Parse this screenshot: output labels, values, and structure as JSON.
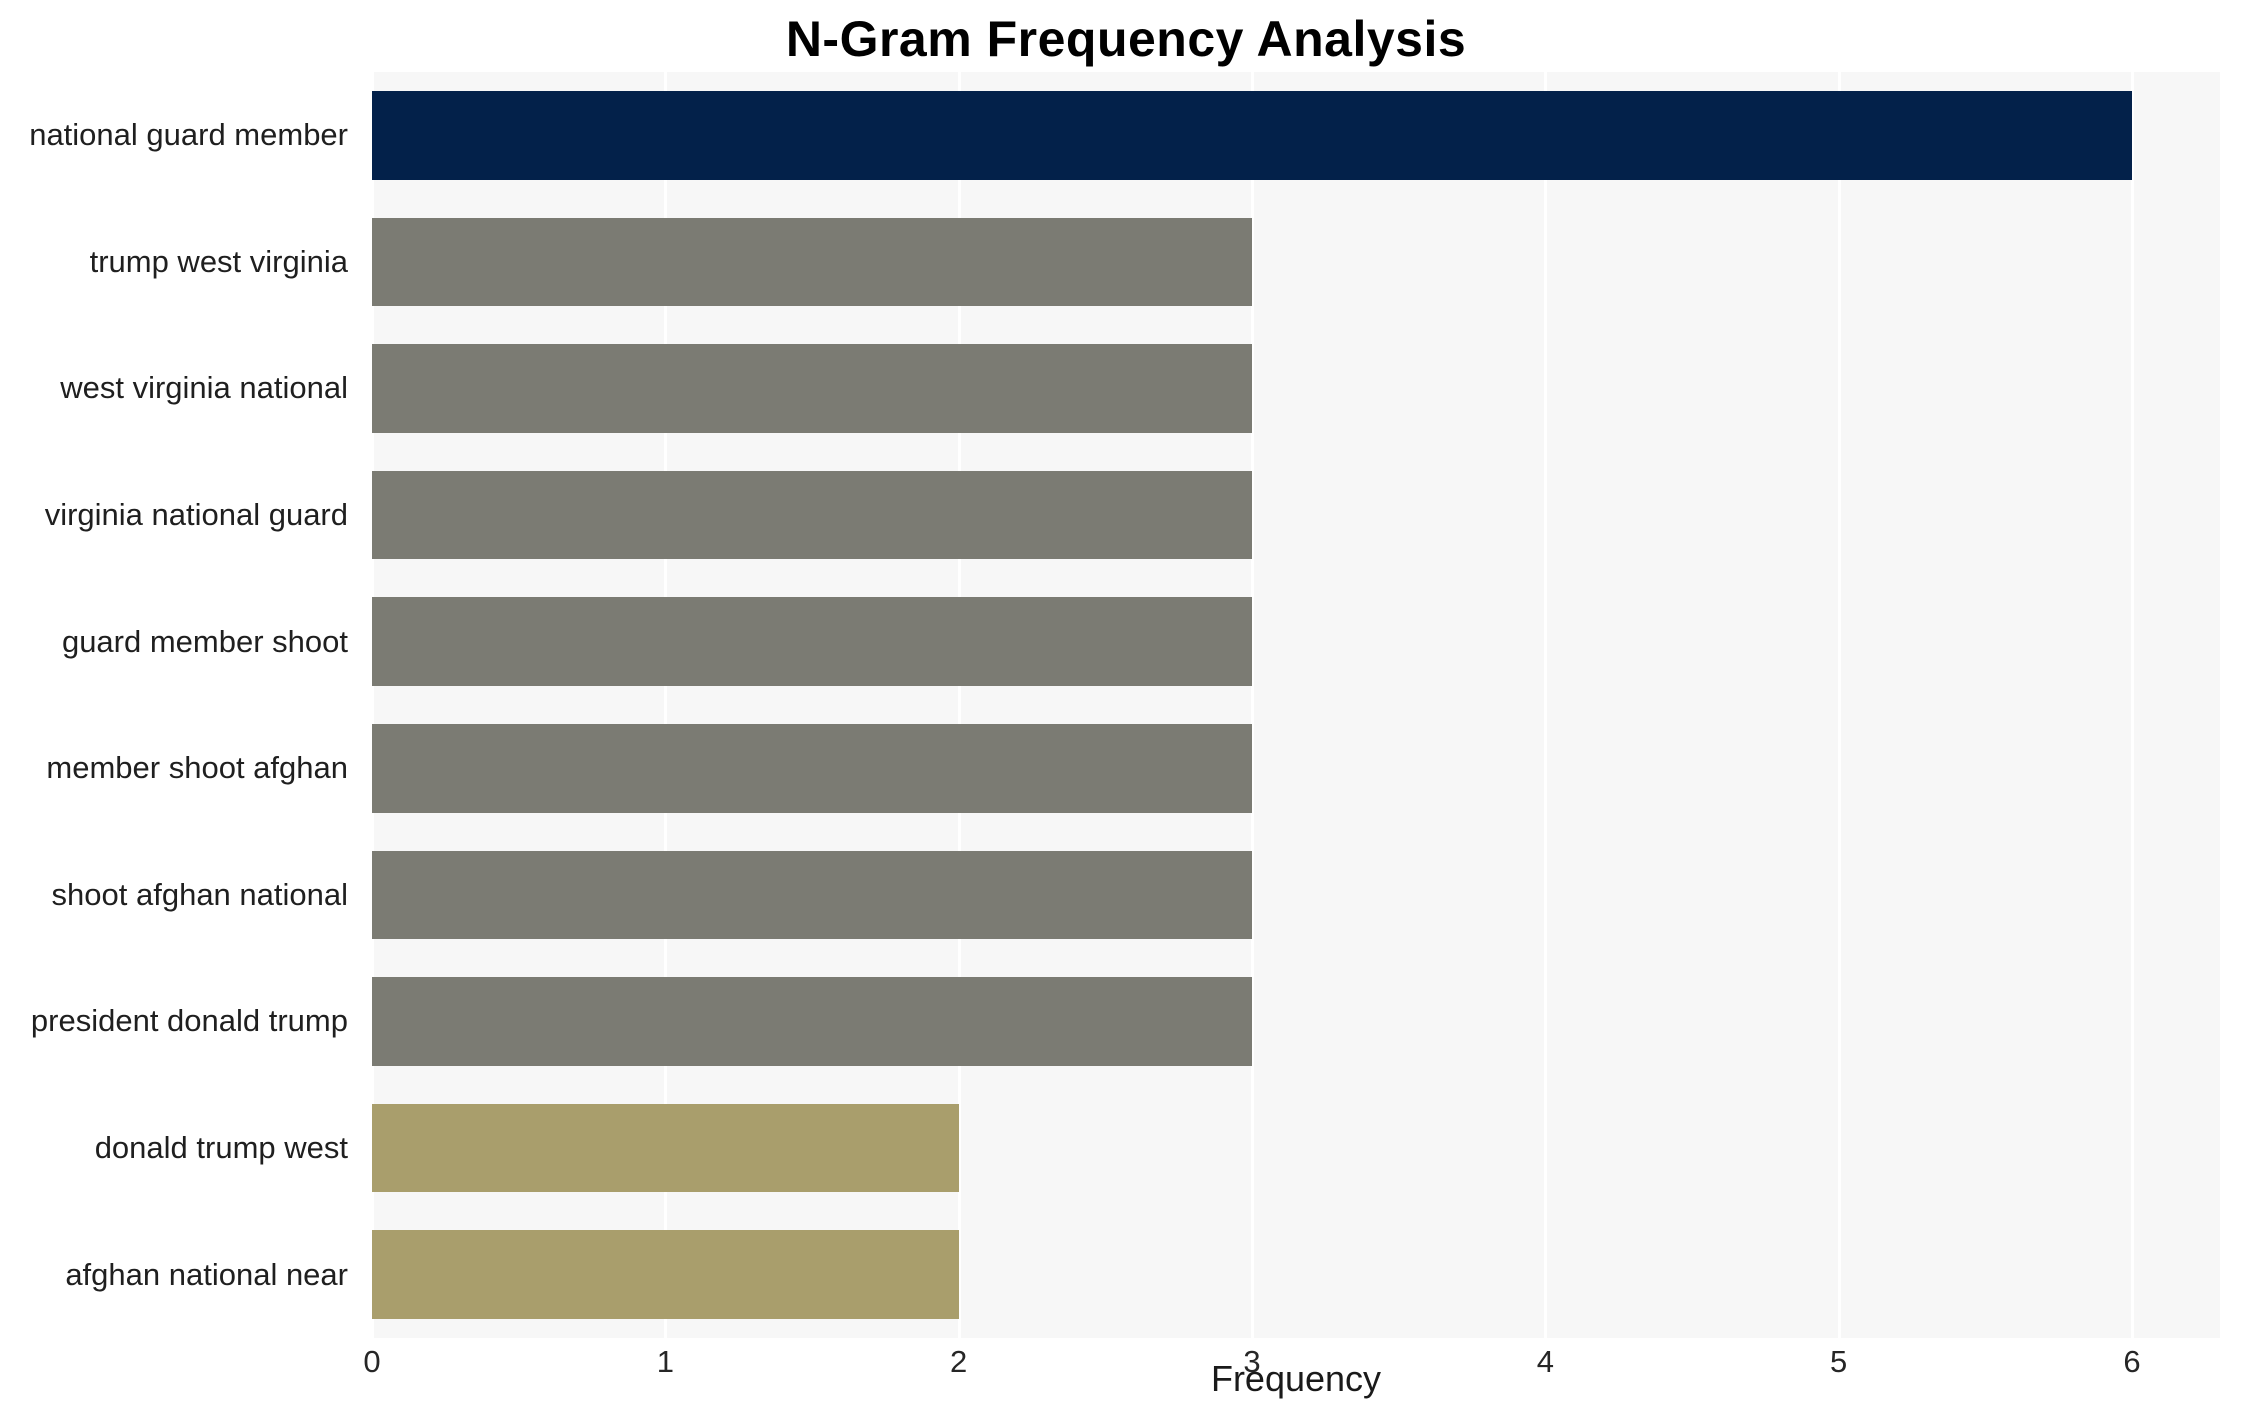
{
  "title": "N-Gram Frequency Analysis",
  "xlabel": "Frequency",
  "chart_data": {
    "type": "bar",
    "orientation": "horizontal",
    "title": "N-Gram Frequency Analysis",
    "xlabel": "Frequency",
    "ylabel": "",
    "categories": [
      "national guard member",
      "trump west virginia",
      "west virginia national",
      "virginia national guard",
      "guard member shoot",
      "member shoot afghan",
      "shoot afghan national",
      "president donald trump",
      "donald trump west",
      "afghan national near"
    ],
    "values": [
      6,
      3,
      3,
      3,
      3,
      3,
      3,
      3,
      2,
      2
    ],
    "bar_colors": [
      "#03214a",
      "#7b7b73",
      "#7b7b73",
      "#7b7b73",
      "#7b7b73",
      "#7b7b73",
      "#7b7b73",
      "#7b7b73",
      "#a99e6c",
      "#a99e6c"
    ],
    "xlim": [
      0,
      6.3
    ],
    "xticks": [
      0,
      1,
      2,
      3,
      4,
      5,
      6
    ],
    "grid": true,
    "gridline_color": "#ffffff",
    "plot_background": "#f7f7f7",
    "legend": "none"
  }
}
